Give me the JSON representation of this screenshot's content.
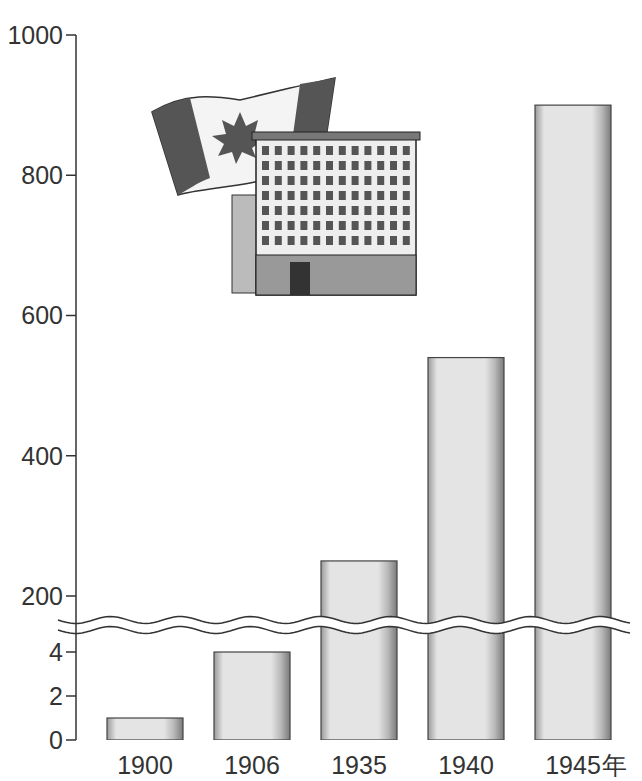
{
  "chart_data": {
    "type": "bar",
    "categories": [
      "1900",
      "1906",
      "1935",
      "1940",
      "1945"
    ],
    "x_label": "年",
    "values": [
      1,
      4,
      250,
      540,
      900
    ],
    "color": "#e4e4e4",
    "ylim": [
      0,
      1000
    ],
    "yticks": [
      0,
      2,
      4,
      200,
      400,
      600,
      800,
      1000
    ],
    "grid": false
  }
}
